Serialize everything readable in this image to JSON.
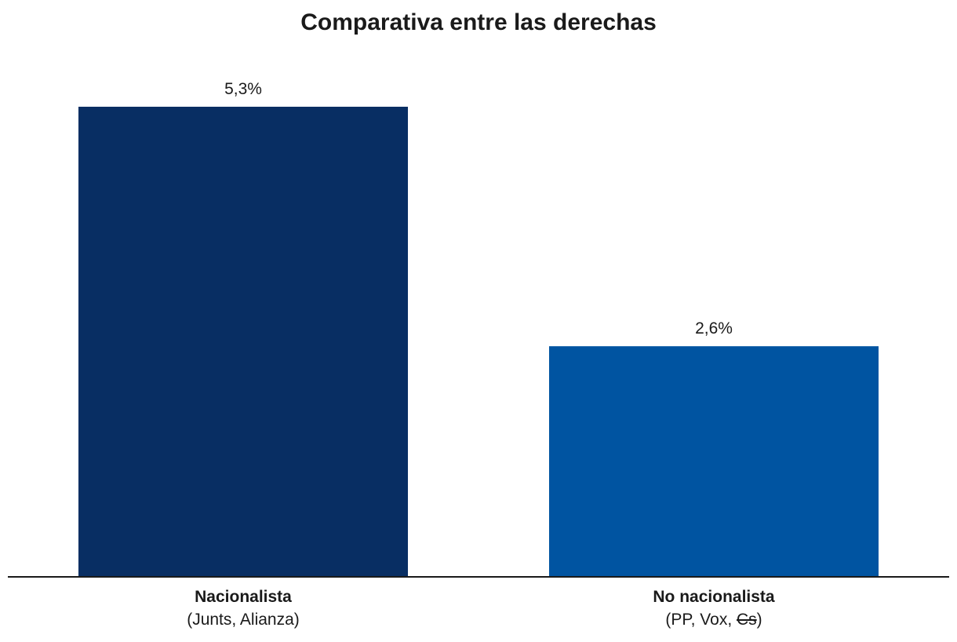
{
  "chart_data": {
    "type": "bar",
    "title": "Comparativa entre las derechas",
    "categories": [
      "Nacionalista",
      "No nacionalista"
    ],
    "category_details": [
      {
        "before": "(Junts, Alianza)",
        "struck": "",
        "after": ""
      },
      {
        "before": "(PP, Vox, ",
        "struck": "Cs",
        "after": ")"
      }
    ],
    "values": [
      5.3,
      2.6
    ],
    "value_labels": [
      "5,3%",
      "2,6%"
    ],
    "colors": [
      "#082e63",
      "#0054a1"
    ],
    "xlabel": "",
    "ylabel": "",
    "ylim": [
      0,
      5.3
    ],
    "grid": false,
    "legend": "none"
  }
}
